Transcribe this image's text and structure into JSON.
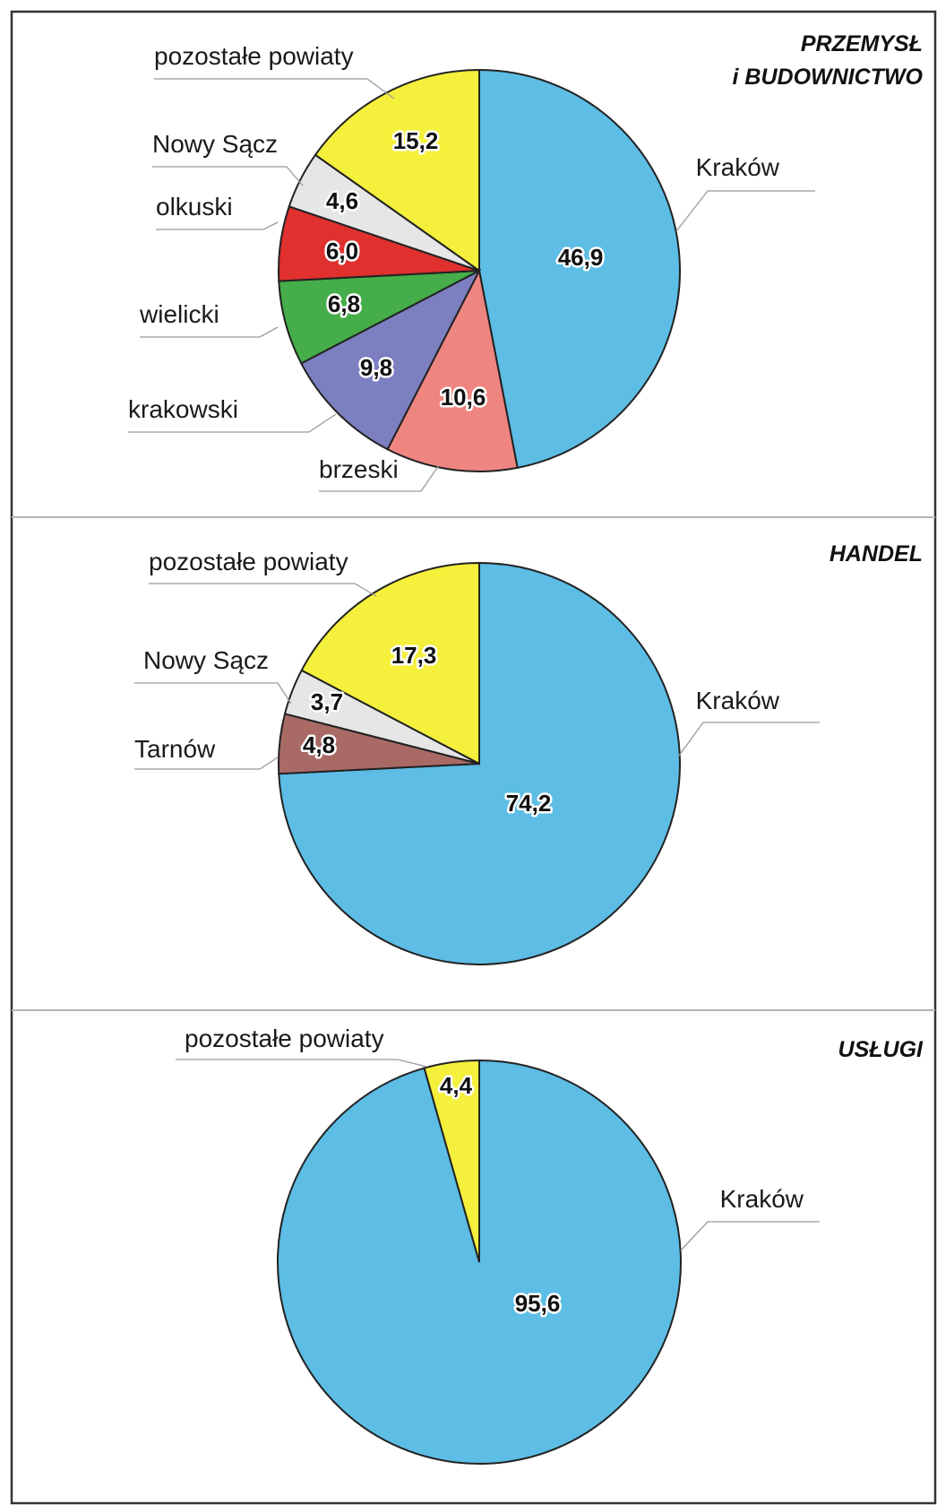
{
  "chart_data": [
    {
      "type": "pie",
      "title": [
        "PRZEMYSŁ",
        "i BUDOWNICTWO"
      ],
      "slices": [
        {
          "label": "Kraków",
          "value": 46.9,
          "value_label": "46,9",
          "color": "#5dbde4"
        },
        {
          "label": "brzeski",
          "value": 10.6,
          "value_label": "10,6",
          "color": "#ee8581"
        },
        {
          "label": "krakowski",
          "value": 9.8,
          "value_label": "9,8",
          "color": "#7c7fc0"
        },
        {
          "label": "wielicki",
          "value": 6.8,
          "value_label": "6,8",
          "color": "#45ad49"
        },
        {
          "label": "olkuski",
          "value": 6.0,
          "value_label": "6,0",
          "color": "#e0312f"
        },
        {
          "label": "Nowy Sącz",
          "value": 4.6,
          "value_label": "4,6",
          "color": "#e6e6e6"
        },
        {
          "label": "pozostałe powiaty",
          "value": 15.2,
          "value_label": "15,2",
          "color": "#f4f03c"
        }
      ]
    },
    {
      "type": "pie",
      "title": [
        "HANDEL"
      ],
      "slices": [
        {
          "label": "Kraków",
          "value": 74.2,
          "value_label": "74,2",
          "color": "#5dbde4"
        },
        {
          "label": "Tarnów",
          "value": 4.8,
          "value_label": "4,8",
          "color": "#a96a66"
        },
        {
          "label": "Nowy Sącz",
          "value": 3.7,
          "value_label": "3,7",
          "color": "#e6e6e6"
        },
        {
          "label": "pozostałe powiaty",
          "value": 17.3,
          "value_label": "17,3",
          "color": "#f4f03c"
        }
      ]
    },
    {
      "type": "pie",
      "title": [
        "USŁUGI"
      ],
      "slices": [
        {
          "label": "Kraków",
          "value": 95.6,
          "value_label": "95,6",
          "color": "#5dbde4"
        },
        {
          "label": "pozostałe powiaty",
          "value": 4.4,
          "value_label": "4,4",
          "color": "#f4f03c"
        }
      ]
    }
  ]
}
